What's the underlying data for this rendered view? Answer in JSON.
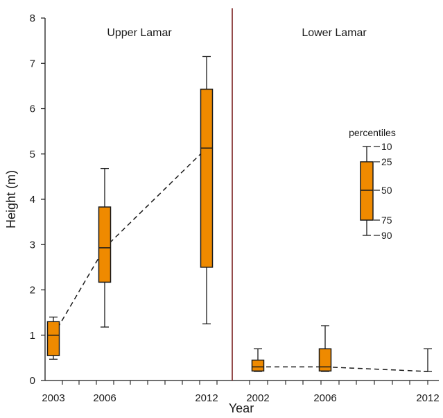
{
  "chart_data": {
    "type": "box",
    "ylabel": "Height (m)",
    "xlabel": "Year",
    "ylim": [
      0,
      8
    ],
    "yticks": [
      0,
      1,
      2,
      3,
      4,
      5,
      6,
      7,
      8
    ],
    "grid": false,
    "colors": {
      "box_fill": "#ef8a00",
      "divider": "#7a1f1f",
      "stroke": "#1a1a1a"
    },
    "panels": [
      {
        "title": "Upper Lamar",
        "categories": [
          "2003",
          "2006",
          "2012"
        ],
        "boxes": [
          {
            "year": "2003",
            "p10": 0.47,
            "p25": 0.55,
            "p50": 1.0,
            "p75": 1.3,
            "p90": 1.4
          },
          {
            "year": "2006",
            "p10": 1.18,
            "p25": 2.17,
            "p50": 2.93,
            "p75": 3.83,
            "p90": 4.68
          },
          {
            "year": "2012",
            "p10": 1.25,
            "p25": 2.5,
            "p50": 5.13,
            "p75": 6.43,
            "p90": 7.15
          }
        ],
        "median_trend_dashed": true
      },
      {
        "title": "Lower Lamar",
        "categories": [
          "2002",
          "2006",
          "2012"
        ],
        "boxes": [
          {
            "year": "2002",
            "p10": 0.2,
            "p25": 0.21,
            "p50": 0.3,
            "p75": 0.45,
            "p90": 0.7
          },
          {
            "year": "2006",
            "p10": 0.2,
            "p25": 0.21,
            "p50": 0.3,
            "p75": 0.7,
            "p90": 1.21
          },
          {
            "year": "2012",
            "p10": 0.2,
            "p25": 0.2,
            "p50": 0.2,
            "p75": 0.2,
            "p90": 0.7
          }
        ],
        "median_trend_dashed": true
      }
    ],
    "legend": {
      "title": "percentiles",
      "placement": "right-middle",
      "labels": [
        "10",
        "25",
        "50",
        "75",
        "90"
      ]
    }
  }
}
